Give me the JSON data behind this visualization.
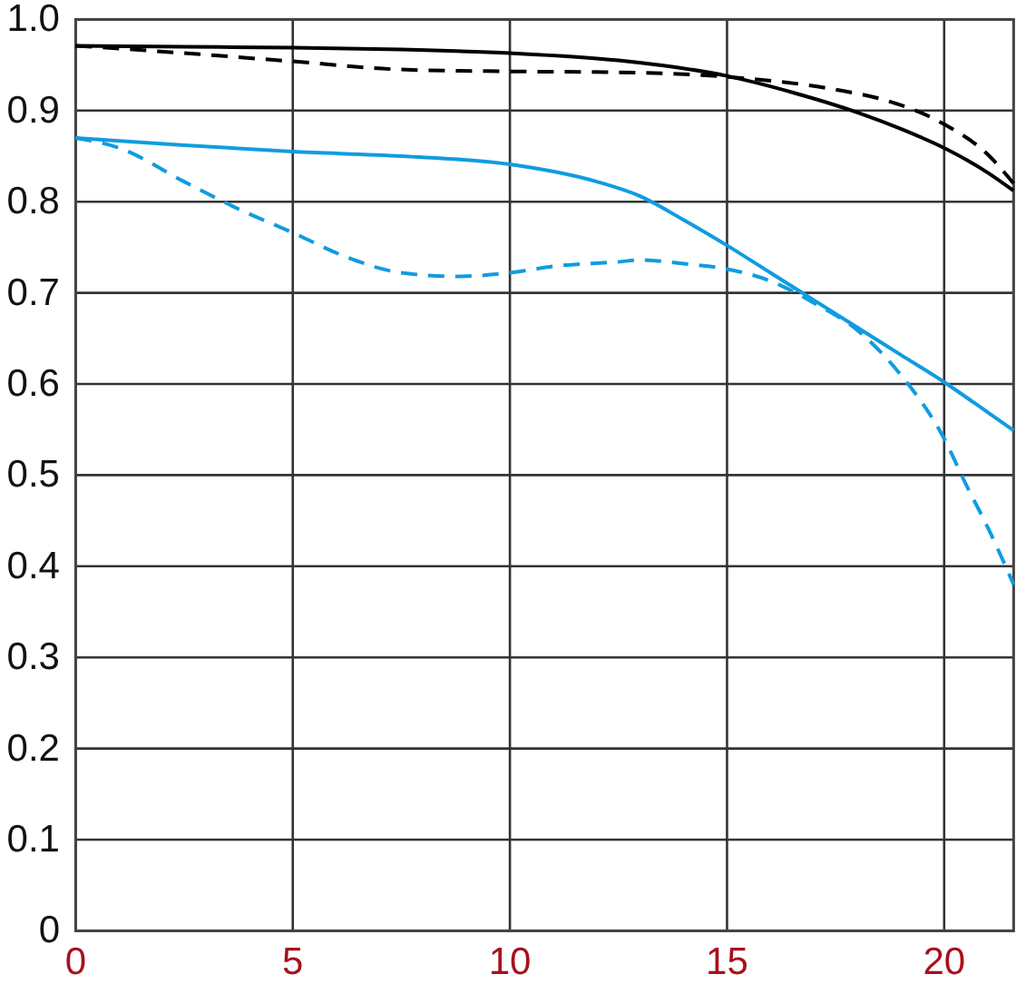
{
  "chart_data": {
    "type": "line",
    "series": [
      {
        "color": "#000000",
        "line_style": "solid",
        "x": [
          0,
          2.5,
          5,
          7.5,
          10,
          12.5,
          15,
          16.5,
          18,
          19,
          20,
          21,
          21.6
        ],
        "values": [
          0.971,
          0.97,
          0.969,
          0.967,
          0.963,
          0.955,
          0.938,
          0.92,
          0.898,
          0.88,
          0.859,
          0.832,
          0.812
        ]
      },
      {
        "color": "#000000",
        "line_style": "dashed",
        "x": [
          0,
          1,
          2.5,
          5,
          7.5,
          10,
          12.5,
          15,
          17.5,
          18.6,
          20,
          21,
          21.6
        ],
        "values": [
          0.971,
          0.968,
          0.963,
          0.954,
          0.945,
          0.943,
          0.942,
          0.937,
          0.923,
          0.912,
          0.885,
          0.852,
          0.82
        ]
      },
      {
        "color": "#109ce0",
        "line_style": "solid",
        "x": [
          0,
          2.5,
          5,
          7.5,
          10,
          12,
          13,
          14,
          15,
          16,
          17,
          18,
          19,
          20,
          21,
          21.6
        ],
        "values": [
          0.87,
          0.862,
          0.855,
          0.85,
          0.841,
          0.822,
          0.806,
          0.78,
          0.752,
          0.722,
          0.692,
          0.662,
          0.632,
          0.602,
          0.569,
          0.549
        ]
      },
      {
        "color": "#109ce0",
        "line_style": "dashed",
        "x": [
          0,
          1,
          2.5,
          3.75,
          5,
          6.25,
          7.5,
          8.75,
          10,
          11,
          12.5,
          13,
          14,
          15,
          16,
          17,
          18,
          19,
          20,
          20.5,
          21,
          21.6
        ],
        "values": [
          0.87,
          0.859,
          0.822,
          0.792,
          0.766,
          0.739,
          0.722,
          0.718,
          0.722,
          0.729,
          0.734,
          0.736,
          0.732,
          0.726,
          0.713,
          0.689,
          0.659,
          0.61,
          0.54,
          0.49,
          0.443,
          0.38
        ]
      }
    ],
    "xlim": [
      0,
      21.6
    ],
    "ylim": [
      0,
      1
    ],
    "xticks": [
      0,
      5,
      10,
      15,
      20
    ],
    "yticks": [
      0,
      0.1,
      0.2,
      0.3,
      0.4,
      0.5,
      0.6,
      0.7,
      0.8,
      0.9,
      {
        "value": 1,
        "label": "1.0"
      }
    ],
    "grid": true
  }
}
